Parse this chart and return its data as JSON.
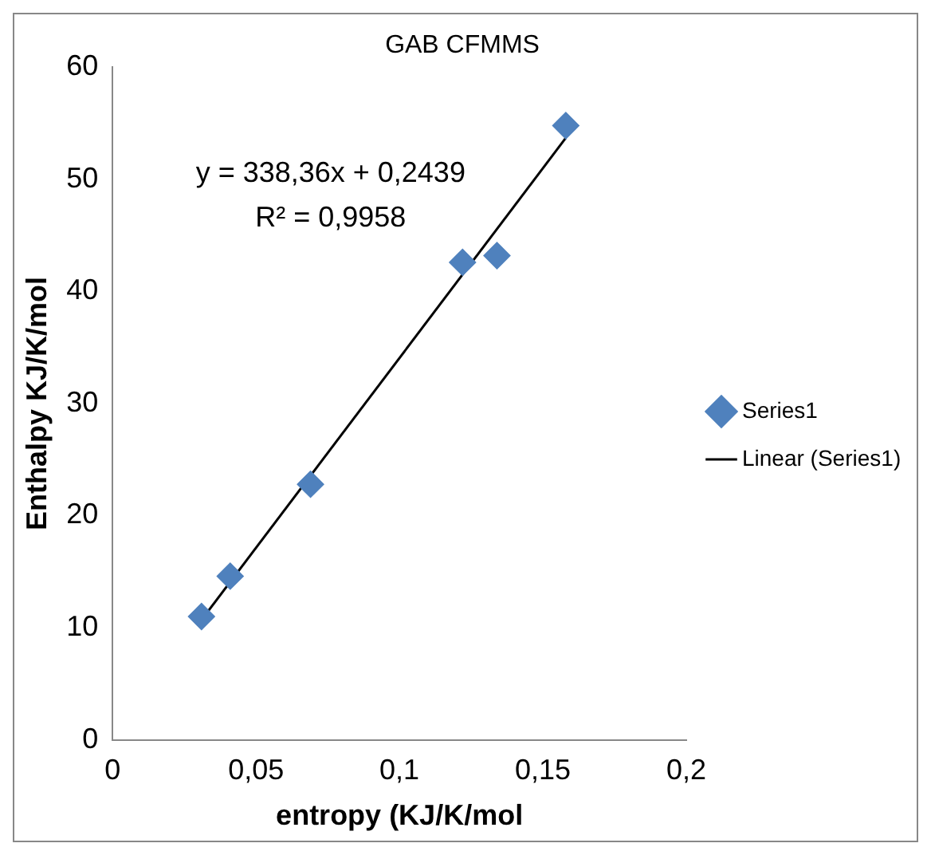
{
  "chart_data": {
    "type": "scatter",
    "title": "GAB CFMMS",
    "xlabel": "entropy (KJ/K/mol",
    "ylabel": "Enthalpy KJ/K/mol",
    "annotations": [
      "y = 338,36x + 0,2439",
      "R² = 0,9958"
    ],
    "series": [
      {
        "name": "Series1",
        "color": "#4f81bd",
        "marker": "diamond",
        "x": [
          0.031,
          0.041,
          0.069,
          0.122,
          0.134,
          0.158
        ],
        "values": [
          11,
          14.6,
          22.8,
          42.6,
          43.2,
          54.8
        ]
      },
      {
        "name": "Linear (Series1)",
        "type": "line",
        "color": "#000000",
        "marker": "none",
        "x": [
          0.031,
          0.158
        ],
        "values": [
          10.7,
          53.7
        ]
      }
    ],
    "xlim": [
      0,
      0.2
    ],
    "xticks": [
      0,
      {
        "value": 0.05,
        "label": "0,05"
      },
      {
        "value": 0.1,
        "label": "0,1"
      },
      {
        "value": 0.15,
        "label": "0,15"
      },
      {
        "value": 0.2,
        "label": "0,2"
      }
    ],
    "ylim": [
      0,
      60
    ],
    "yticks": [
      0,
      10,
      20,
      30,
      40,
      50,
      60
    ],
    "grid": false,
    "legend": "right"
  }
}
